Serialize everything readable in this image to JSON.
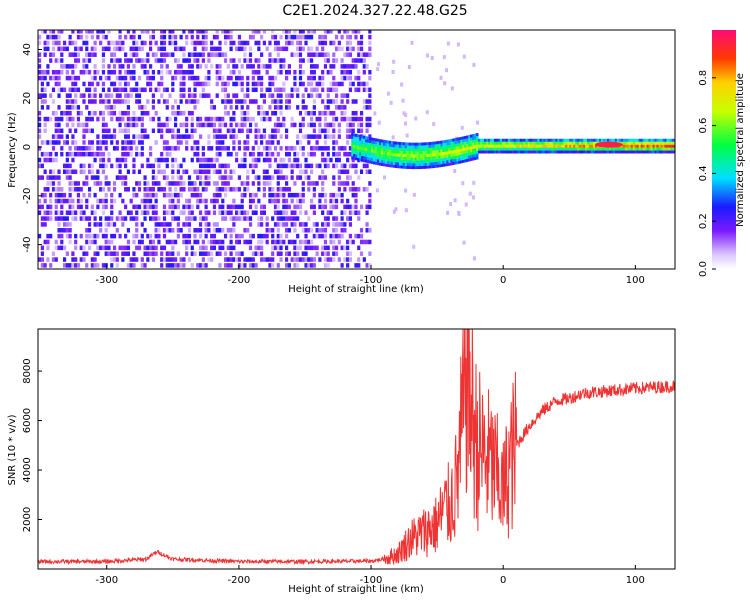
{
  "title": "C2E1.2024.327.22.48.G25",
  "chart_data": [
    {
      "type": "heatmap",
      "xlabel": "Height of straight line (km)",
      "ylabel": "Frequency (Hz)",
      "xlim": [
        -352,
        130
      ],
      "ylim": [
        -50,
        48
      ],
      "xticks": [
        -300,
        -200,
        -100,
        0,
        100
      ],
      "yticks": [
        -40,
        -20,
        0,
        20,
        40
      ],
      "colorbar": {
        "label": "Normalized spectral amplitude",
        "range": [
          0,
          1
        ],
        "ticks": [
          0.0,
          0.2,
          0.4,
          0.6,
          0.8
        ],
        "tick_labels": [
          "0.0",
          "0.2",
          "0.4",
          "0.6",
          "0.8"
        ]
      },
      "features": [
        {
          "name": "broadband noise",
          "x_range": [
            -352,
            -100
          ],
          "freq_range": [
            -50,
            48
          ],
          "amplitude": 0.15
        },
        {
          "name": "signal band",
          "x_range": [
            -115,
            130
          ],
          "center_freq": 0,
          "halfwidth_hz": 3,
          "amplitude_range": [
            0.25,
            0.95
          ]
        },
        {
          "name": "peak",
          "x": 80,
          "freq": 1,
          "amplitude": 0.95
        }
      ]
    },
    {
      "type": "line",
      "xlabel": "Height of straight line (km)",
      "ylabel": "SNR (10 * v/v)",
      "xlim": [
        -352,
        130
      ],
      "ylim": [
        0,
        9700
      ],
      "xticks": [
        -300,
        -200,
        -100,
        0,
        100
      ],
      "yticks": [
        2000,
        4000,
        6000,
        8000
      ],
      "color": "#ee3333",
      "series": [
        {
          "x": [
            -352,
            -300,
            -270,
            -262,
            -250,
            -200,
            -150,
            -100,
            -90,
            -80,
            -70,
            -60,
            -50,
            -45,
            -40,
            -35,
            -30,
            -27,
            -25,
            -20,
            -15,
            -10,
            -5,
            0,
            5,
            10,
            20,
            30,
            40,
            50,
            60,
            80,
            100,
            130
          ],
          "y": [
            300,
            300,
            400,
            700,
            400,
            300,
            300,
            320,
            400,
            600,
            1200,
            1500,
            1800,
            2400,
            2600,
            3500,
            6300,
            9500,
            6800,
            5000,
            4600,
            4300,
            3800,
            3100,
            4200,
            5000,
            5800,
            6400,
            6800,
            6900,
            7100,
            7200,
            7300,
            7400
          ]
        }
      ]
    }
  ]
}
